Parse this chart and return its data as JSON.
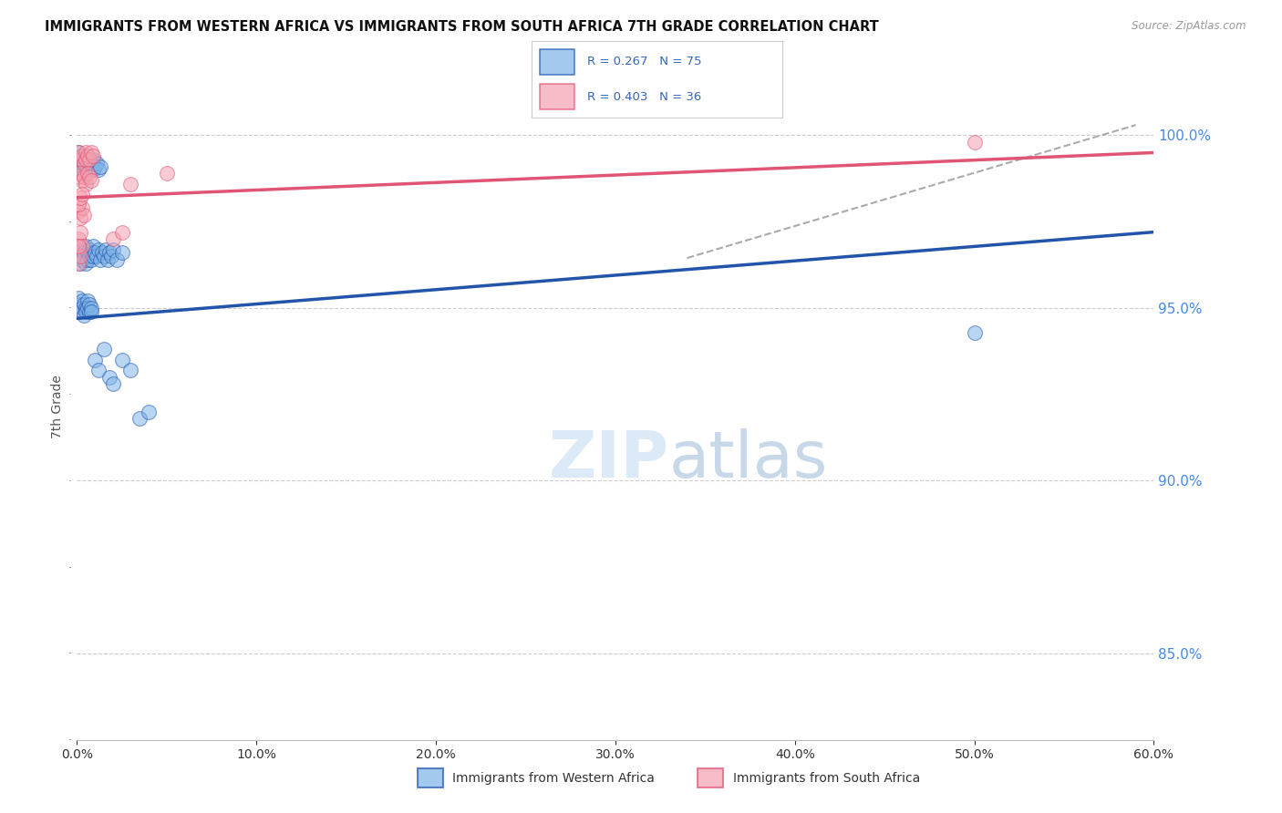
{
  "title": "IMMIGRANTS FROM WESTERN AFRICA VS IMMIGRANTS FROM SOUTH AFRICA 7TH GRADE CORRELATION CHART",
  "source": "Source: ZipAtlas.com",
  "ylabel": "7th Grade",
  "r_blue": 0.267,
  "n_blue": 75,
  "r_pink": 0.403,
  "n_pink": 36,
  "legend_label_blue": "Immigrants from Western Africa",
  "legend_label_pink": "Immigrants from South Africa",
  "blue_color": "#7EB3E8",
  "pink_color": "#F4A0B0",
  "blue_line_color": "#2255AA",
  "pink_line_color": "#E05575",
  "dash_color": "#AAAAAA",
  "background_color": "#ffffff",
  "blue_scatter_color": "#7EB3E8",
  "pink_scatter_color": "#F4A0B0",
  "xlim": [
    0.0,
    0.6
  ],
  "ylim": [
    82.5,
    101.8
  ],
  "yticks": [
    85.0,
    90.0,
    95.0,
    100.0
  ],
  "xticks": [
    0.0,
    0.1,
    0.2,
    0.3,
    0.4,
    0.5,
    0.6
  ],
  "blue_trend_x0": 0.0,
  "blue_trend_y0": 94.7,
  "blue_trend_x1": 0.6,
  "blue_trend_y1": 97.2,
  "pink_trend_x0": 0.0,
  "pink_trend_y0": 98.2,
  "pink_trend_x1": 0.6,
  "pink_trend_y1": 99.5,
  "dash_trend_x0": 0.34,
  "dash_trend_y0": 96.45,
  "dash_trend_x1": 0.59,
  "dash_trend_y1": 100.3,
  "blue_points": [
    [
      0.001,
      99.5
    ],
    [
      0.002,
      99.3
    ],
    [
      0.003,
      99.1
    ],
    [
      0.003,
      99.0
    ],
    [
      0.004,
      99.2
    ],
    [
      0.004,
      99.0
    ],
    [
      0.005,
      99.1
    ],
    [
      0.005,
      99.3
    ],
    [
      0.006,
      99.2
    ],
    [
      0.006,
      99.0
    ],
    [
      0.007,
      99.1
    ],
    [
      0.007,
      99.0
    ],
    [
      0.008,
      99.2
    ],
    [
      0.008,
      99.1
    ],
    [
      0.009,
      99.0
    ],
    [
      0.009,
      99.3
    ],
    [
      0.01,
      99.1
    ],
    [
      0.011,
      99.2
    ],
    [
      0.012,
      99.0
    ],
    [
      0.013,
      99.1
    ],
    [
      0.001,
      96.8
    ],
    [
      0.002,
      96.5
    ],
    [
      0.002,
      96.3
    ],
    [
      0.003,
      96.7
    ],
    [
      0.003,
      96.4
    ],
    [
      0.004,
      96.6
    ],
    [
      0.004,
      96.5
    ],
    [
      0.005,
      96.8
    ],
    [
      0.005,
      96.3
    ],
    [
      0.006,
      96.6
    ],
    [
      0.006,
      96.4
    ],
    [
      0.007,
      96.7
    ],
    [
      0.007,
      96.5
    ],
    [
      0.008,
      96.4
    ],
    [
      0.008,
      96.6
    ],
    [
      0.009,
      96.8
    ],
    [
      0.009,
      96.5
    ],
    [
      0.01,
      96.6
    ],
    [
      0.011,
      96.5
    ],
    [
      0.012,
      96.7
    ],
    [
      0.013,
      96.4
    ],
    [
      0.014,
      96.6
    ],
    [
      0.015,
      96.5
    ],
    [
      0.016,
      96.7
    ],
    [
      0.017,
      96.4
    ],
    [
      0.018,
      96.6
    ],
    [
      0.019,
      96.5
    ],
    [
      0.02,
      96.7
    ],
    [
      0.022,
      96.4
    ],
    [
      0.025,
      96.6
    ],
    [
      0.001,
      95.3
    ],
    [
      0.002,
      95.1
    ],
    [
      0.002,
      94.9
    ],
    [
      0.003,
      95.2
    ],
    [
      0.003,
      95.0
    ],
    [
      0.004,
      95.1
    ],
    [
      0.004,
      94.8
    ],
    [
      0.005,
      95.0
    ],
    [
      0.005,
      94.9
    ],
    [
      0.006,
      95.2
    ],
    [
      0.006,
      95.0
    ],
    [
      0.007,
      94.9
    ],
    [
      0.007,
      95.1
    ],
    [
      0.008,
      95.0
    ],
    [
      0.008,
      94.9
    ],
    [
      0.01,
      93.5
    ],
    [
      0.012,
      93.2
    ],
    [
      0.015,
      93.8
    ],
    [
      0.018,
      93.0
    ],
    [
      0.02,
      92.8
    ],
    [
      0.025,
      93.5
    ],
    [
      0.03,
      93.2
    ],
    [
      0.035,
      91.8
    ],
    [
      0.04,
      92.0
    ],
    [
      0.5,
      94.3
    ]
  ],
  "pink_points": [
    [
      0.001,
      99.5
    ],
    [
      0.002,
      99.3
    ],
    [
      0.003,
      99.4
    ],
    [
      0.004,
      99.2
    ],
    [
      0.005,
      99.5
    ],
    [
      0.005,
      99.3
    ],
    [
      0.006,
      99.4
    ],
    [
      0.007,
      99.3
    ],
    [
      0.008,
      99.5
    ],
    [
      0.009,
      99.4
    ],
    [
      0.001,
      98.8
    ],
    [
      0.002,
      98.9
    ],
    [
      0.003,
      98.7
    ],
    [
      0.004,
      98.8
    ],
    [
      0.005,
      98.6
    ],
    [
      0.006,
      98.9
    ],
    [
      0.007,
      98.8
    ],
    [
      0.008,
      98.7
    ],
    [
      0.001,
      97.8
    ],
    [
      0.002,
      97.6
    ],
    [
      0.003,
      97.9
    ],
    [
      0.004,
      97.7
    ],
    [
      0.001,
      97.0
    ],
    [
      0.002,
      97.2
    ],
    [
      0.003,
      96.8
    ],
    [
      0.001,
      96.3
    ],
    [
      0.002,
      96.5
    ],
    [
      0.02,
      97.0
    ],
    [
      0.025,
      97.2
    ],
    [
      0.001,
      98.0
    ],
    [
      0.002,
      98.2
    ],
    [
      0.003,
      98.3
    ],
    [
      0.03,
      98.6
    ],
    [
      0.001,
      96.8
    ],
    [
      0.05,
      98.9
    ],
    [
      0.5,
      99.8
    ]
  ]
}
